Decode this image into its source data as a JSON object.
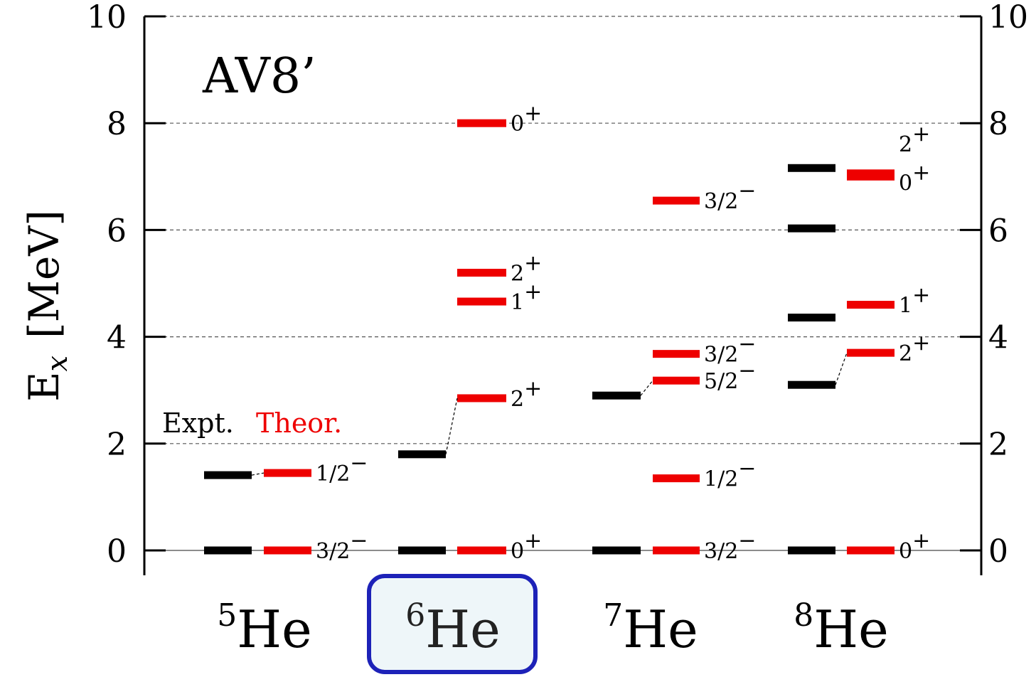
{
  "chart_data": {
    "type": "level-scheme",
    "title": "AV8’",
    "ylabel": "E_x [MeV]",
    "ylabel_main": "E",
    "ylabel_sub": "x",
    "ylabel_unit": "[MeV]",
    "ylim": [
      0,
      10
    ],
    "yticks": [
      0,
      2,
      4,
      6,
      8,
      10
    ],
    "grid": "horizontal dashed",
    "legend": {
      "expt_label": "Expt.",
      "theor_label": "Theor.",
      "expt_color": "#000000",
      "theor_color": "#ee0000"
    },
    "nuclei": [
      {
        "mass": "5",
        "symbol": "He",
        "highlighted": false,
        "expt": [
          0.0,
          1.41
        ],
        "theor": [
          {
            "energy": 0.0,
            "j": "3/2",
            "parity": "−"
          },
          {
            "energy": 1.45,
            "j": "1/2",
            "parity": "−"
          }
        ]
      },
      {
        "mass": "6",
        "symbol": "He",
        "highlighted": true,
        "expt": [
          0.0,
          1.8
        ],
        "theor": [
          {
            "energy": 0.0,
            "j": "0",
            "parity": "+"
          },
          {
            "energy": 2.85,
            "j": "2",
            "parity": "+"
          },
          {
            "energy": 4.66,
            "j": "1",
            "parity": "+"
          },
          {
            "energy": 5.2,
            "j": "2",
            "parity": "+"
          },
          {
            "energy": 8.0,
            "j": "0",
            "parity": "+"
          }
        ]
      },
      {
        "mass": "7",
        "symbol": "He",
        "highlighted": false,
        "expt": [
          0.0,
          2.9
        ],
        "theor": [
          {
            "energy": 0.0,
            "j": "3/2",
            "parity": "−"
          },
          {
            "energy": 1.35,
            "j": "1/2",
            "parity": "−"
          },
          {
            "energy": 3.18,
            "j": "5/2",
            "parity": "−"
          },
          {
            "energy": 3.68,
            "j": "3/2",
            "parity": "−"
          },
          {
            "energy": 6.55,
            "j": "3/2",
            "parity": "−"
          }
        ]
      },
      {
        "mass": "8",
        "symbol": "He",
        "highlighted": false,
        "expt": [
          0.0,
          3.1,
          4.36,
          6.03,
          7.16
        ],
        "theor": [
          {
            "energy": 0.0,
            "j": "0",
            "parity": "+"
          },
          {
            "energy": 3.7,
            "j": "2",
            "parity": "+"
          },
          {
            "energy": 4.6,
            "j": "1",
            "parity": "+"
          },
          {
            "energy": 7.0,
            "j": "0",
            "parity": "+"
          },
          {
            "energy": 7.06,
            "j": "2",
            "parity": "+"
          }
        ]
      }
    ],
    "connections": [
      {
        "nucleus": 0,
        "expt": 1.41,
        "theor": 1.45
      },
      {
        "nucleus": 1,
        "expt": 1.8,
        "theor": 2.85
      },
      {
        "nucleus": 2,
        "expt": 2.9,
        "theor": 3.18
      },
      {
        "nucleus": 3,
        "expt": 3.1,
        "theor": 3.7
      }
    ]
  }
}
